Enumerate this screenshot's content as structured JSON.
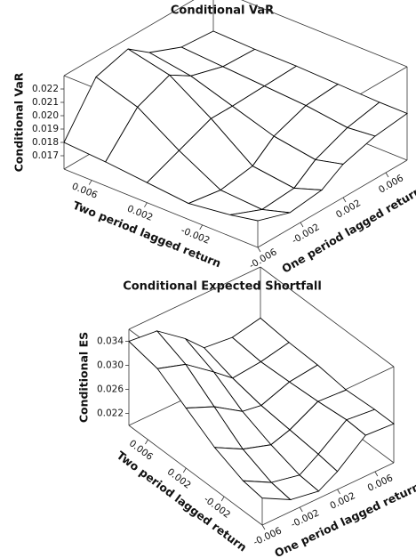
{
  "chart_data": [
    {
      "type": "surface",
      "title": "Conditional VaR",
      "xlabel": "Two period lagged return",
      "ylabel": "One period lagged return",
      "zlabel": "Conditional VaR",
      "x": [
        0.008,
        0.005,
        0.002,
        -0.001,
        -0.004,
        -0.006
      ],
      "y": [
        -0.006,
        -0.003,
        0,
        0.002,
        0.005,
        0.008
      ],
      "z": [
        [
          0.018,
          0.0215,
          0.0222,
          0.021,
          0.02,
          0.0198
        ],
        [
          0.0178,
          0.0205,
          0.0215,
          0.0205,
          0.0198,
          0.0197
        ],
        [
          0.0175,
          0.0185,
          0.0195,
          0.0195,
          0.0196,
          0.0197
        ],
        [
          0.0172,
          0.0168,
          0.0172,
          0.0185,
          0.0194,
          0.0196
        ],
        [
          0.0176,
          0.0166,
          0.0168,
          0.018,
          0.019,
          0.0195
        ],
        [
          0.018,
          0.0172,
          0.0175,
          0.0185,
          0.0192,
          0.0195
        ]
      ],
      "xlim": [
        0.008,
        -0.006
      ],
      "ylim": [
        -0.006,
        0.008
      ],
      "zlim": [
        0.016,
        0.023
      ],
      "xticks": [
        0.006,
        0.002,
        -0.002
      ],
      "yticks": [
        -0.006,
        -0.002,
        0.002,
        0.006
      ],
      "zticks": [
        0.017,
        0.018,
        0.019,
        {
          "value": 0.02,
          "label": "0.020"
        },
        0.021,
        0.022
      ]
    },
    {
      "type": "surface",
      "title": "Conditional Expected Shortfall",
      "xlabel": "Two period lagged return",
      "ylabel": "One period lagged return",
      "zlabel": "Conditional ES",
      "x": [
        0.008,
        0.005,
        0.002,
        -0.001,
        -0.004,
        -0.006
      ],
      "y": [
        -0.006,
        -0.003,
        0,
        0.002,
        0.005,
        0.008
      ],
      "z": [
        [
          0.034,
          0.0335,
          0.03,
          0.027,
          0.0265,
          0.0275
        ],
        [
          0.033,
          0.0315,
          0.028,
          0.0255,
          0.026,
          0.027
        ],
        [
          0.03,
          0.028,
          0.025,
          0.0245,
          0.0262,
          0.0268
        ],
        [
          0.027,
          0.0245,
          0.023,
          0.024,
          0.0265,
          0.0262
        ],
        [
          0.025,
          0.0225,
          0.0215,
          0.0235,
          0.027,
          0.0265
        ],
        [
          0.0245,
          0.022,
          0.0212,
          0.023,
          0.0268,
          0.0265
        ]
      ],
      "xlim": [
        0.008,
        -0.006
      ],
      "ylim": [
        -0.006,
        0.008
      ],
      "zlim": [
        0.02,
        0.036
      ],
      "xticks": [
        0.006,
        0.002,
        -0.002
      ],
      "yticks": [
        -0.006,
        -0.002,
        0.002,
        0.006
      ],
      "zticks": [
        0.022,
        0.026,
        {
          "value": 0.03,
          "label": "0.030"
        },
        0.034
      ]
    }
  ]
}
